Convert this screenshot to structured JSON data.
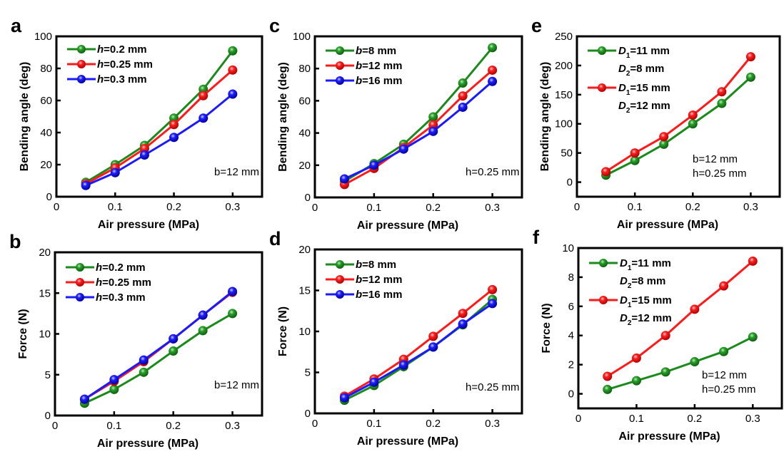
{
  "figure": {
    "colors": {
      "green": "#1a8a1a",
      "red": "#ff1a1a",
      "blue": "#1a1aff"
    }
  },
  "chart_data": [
    {
      "id": "a",
      "panel_letter": "a",
      "type": "line",
      "xlabel": "Air pressure (MPa)",
      "ylabel": "Bending angle (deg)",
      "xlim": [
        0,
        0.35
      ],
      "ylim": [
        0,
        100
      ],
      "xticks": [
        0,
        0.1,
        0.2,
        0.3
      ],
      "xtick_labels": [
        "0",
        "0.1",
        "0.2",
        "0.3"
      ],
      "yticks": [
        0,
        20,
        40,
        60,
        80,
        100
      ],
      "ytick_labels": [
        "0",
        "20",
        "40",
        "60",
        "80",
        "100"
      ],
      "grid": false,
      "legend_position": "top-left",
      "annotation": [
        "b=12 mm"
      ],
      "x": [
        0.05,
        0.1,
        0.15,
        0.2,
        0.25,
        0.3
      ],
      "series": [
        {
          "name": "h=0.2 mm",
          "var": "h",
          "rest": "=0.2 mm",
          "color": "#1a8a1a",
          "values": [
            9,
            20,
            32,
            49,
            67,
            91
          ]
        },
        {
          "name": "h=0.25 mm",
          "var": "h",
          "rest": "=0.25 mm",
          "color": "#ff1a1a",
          "values": [
            8,
            18,
            30,
            45,
            63,
            79
          ]
        },
        {
          "name": "h=0.3 mm",
          "var": "h",
          "rest": "=0.3 mm",
          "color": "#1a1aff",
          "values": [
            7,
            15,
            26,
            37,
            49,
            64
          ]
        }
      ]
    },
    {
      "id": "b",
      "panel_letter": "b",
      "type": "line",
      "xlabel": "Air pressure (MPa)",
      "ylabel": "Force (N)",
      "xlim": [
        0,
        0.35
      ],
      "ylim": [
        0,
        20
      ],
      "xticks": [
        0,
        0.1,
        0.2,
        0.3
      ],
      "xtick_labels": [
        "0",
        "0.1",
        "0.2",
        "0.3"
      ],
      "yticks": [
        0,
        5,
        10,
        15,
        20
      ],
      "ytick_labels": [
        "0",
        "5",
        "10",
        "15",
        "20"
      ],
      "grid": false,
      "legend_position": "top-left",
      "annotation": [
        "b=12 mm"
      ],
      "x": [
        0.05,
        0.1,
        0.15,
        0.2,
        0.25,
        0.3
      ],
      "series": [
        {
          "name": "h=0.2 mm",
          "var": "h",
          "rest": "=0.2 mm",
          "color": "#1a8a1a",
          "values": [
            1.5,
            3.2,
            5.3,
            7.9,
            10.4,
            12.5
          ]
        },
        {
          "name": "h=0.25 mm",
          "var": "h",
          "rest": "=0.25 mm",
          "color": "#ff1a1a",
          "values": [
            2.0,
            4.2,
            6.6,
            9.4,
            12.3,
            15.1
          ]
        },
        {
          "name": "h=0.3 mm",
          "var": "h",
          "rest": "=0.3 mm",
          "color": "#1a1aff",
          "values": [
            2.0,
            4.4,
            6.8,
            9.4,
            12.3,
            15.2
          ]
        }
      ]
    },
    {
      "id": "c",
      "panel_letter": "c",
      "type": "line",
      "xlabel": "Air pressure (MPa)",
      "ylabel": "Bending angle (deg)",
      "xlim": [
        0,
        0.35
      ],
      "ylim": [
        0,
        100
      ],
      "xticks": [
        0,
        0.1,
        0.2,
        0.3
      ],
      "xtick_labels": [
        "0",
        "0.1",
        "0.2",
        "0.3"
      ],
      "yticks": [
        0,
        20,
        40,
        60,
        80,
        100
      ],
      "ytick_labels": [
        "0",
        "20",
        "40",
        "60",
        "80",
        "100"
      ],
      "grid": false,
      "legend_position": "top-left",
      "annotation": [
        "h=0.25 mm"
      ],
      "x": [
        0.05,
        0.1,
        0.15,
        0.2,
        0.25,
        0.3
      ],
      "series": [
        {
          "name": "b=8 mm",
          "var": "b",
          "rest": "=8 mm",
          "color": "#1a8a1a",
          "values": [
            10,
            21,
            33,
            50,
            71,
            93
          ]
        },
        {
          "name": "b=12 mm",
          "var": "b",
          "rest": "=12 mm",
          "color": "#ff1a1a",
          "values": [
            8,
            18,
            31,
            45,
            63,
            79
          ]
        },
        {
          "name": "b=16 mm",
          "var": "b",
          "rest": "=16 mm",
          "color": "#1a1aff",
          "values": [
            11.5,
            20,
            30,
            41,
            56,
            72
          ]
        }
      ]
    },
    {
      "id": "d",
      "panel_letter": "d",
      "type": "line",
      "xlabel": "Air pressure (MPa)",
      "ylabel": "Force (N)",
      "xlim": [
        0,
        0.35
      ],
      "ylim": [
        0,
        20
      ],
      "xticks": [
        0,
        0.1,
        0.2,
        0.3
      ],
      "xtick_labels": [
        "0",
        "0.1",
        "0.2",
        "0.3"
      ],
      "yticks": [
        0,
        5,
        10,
        15,
        20
      ],
      "ytick_labels": [
        "0",
        "5",
        "10",
        "15",
        "20"
      ],
      "grid": false,
      "legend_position": "top-left",
      "annotation": [
        "h=0.25 mm"
      ],
      "x": [
        0.05,
        0.1,
        0.15,
        0.2,
        0.25,
        0.3
      ],
      "series": [
        {
          "name": "b=8 mm",
          "var": "b",
          "rest": "=8 mm",
          "color": "#1a8a1a",
          "values": [
            1.6,
            3.4,
            5.7,
            8.1,
            10.8,
            13.9
          ]
        },
        {
          "name": "b=12 mm",
          "var": "b",
          "rest": "=12 mm",
          "color": "#ff1a1a",
          "values": [
            2.1,
            4.2,
            6.6,
            9.4,
            12.2,
            15.1
          ]
        },
        {
          "name": "b=16 mm",
          "var": "b",
          "rest": "=16 mm",
          "color": "#1a1aff",
          "values": [
            1.9,
            3.8,
            5.9,
            8.1,
            10.9,
            13.4
          ]
        }
      ]
    },
    {
      "id": "e",
      "panel_letter": "e",
      "type": "line",
      "xlabel": "Air pressure (MPa)",
      "ylabel": "Bending angle (deg)",
      "xlim": [
        0,
        0.35
      ],
      "ylim": [
        -25,
        250
      ],
      "xticks": [
        0,
        0.1,
        0.2,
        0.3
      ],
      "xtick_labels": [
        "0",
        "0.1",
        "0.2",
        "0.3"
      ],
      "yticks": [
        0,
        50,
        100,
        150,
        200,
        250
      ],
      "ytick_labels": [
        "0",
        "50",
        "100",
        "150",
        "200",
        "250"
      ],
      "grid": false,
      "legend_position": "top-left",
      "annotation": [
        "b=12 mm",
        "h=0.25 mm"
      ],
      "x": [
        0.05,
        0.1,
        0.15,
        0.2,
        0.25,
        0.3
      ],
      "series": [
        {
          "name": "D1=11 mm, D2=8 mm",
          "line1": [
            "D",
            "1",
            "=11 mm"
          ],
          "line2": [
            "D",
            "2",
            "=8 mm"
          ],
          "color": "#1a8a1a",
          "values": [
            12,
            37,
            65,
            100,
            135,
            180
          ]
        },
        {
          "name": "D1=15 mm, D2=12 mm",
          "line1": [
            "D",
            "1",
            "=15 mm"
          ],
          "line2": [
            "D",
            "2",
            "=12 mm"
          ],
          "color": "#ff1a1a",
          "values": [
            18,
            50,
            78,
            115,
            155,
            215
          ]
        }
      ]
    },
    {
      "id": "f",
      "panel_letter": "f",
      "type": "line",
      "xlabel": "Air pressure (MPa)",
      "ylabel": "Force (N)",
      "xlim": [
        0,
        0.35
      ],
      "ylim": [
        -1,
        10
      ],
      "xticks": [
        0,
        0.1,
        0.2,
        0.3
      ],
      "xtick_labels": [
        "0",
        "0.1",
        "0.2",
        "0.3"
      ],
      "yticks": [
        0,
        2,
        4,
        6,
        8,
        10
      ],
      "ytick_labels": [
        "0",
        "2",
        "4",
        "6",
        "8",
        "10"
      ],
      "grid": false,
      "legend_position": "top-left",
      "annotation": [
        "b=12 mm",
        "h=0.25 mm"
      ],
      "x": [
        0.05,
        0.1,
        0.15,
        0.2,
        0.25,
        0.3
      ],
      "series": [
        {
          "name": "D1=11 mm, D2=8 mm",
          "line1": [
            "D",
            "1",
            "=11 mm"
          ],
          "line2": [
            "D",
            "2",
            "=8 mm"
          ],
          "color": "#1a8a1a",
          "values": [
            0.3,
            0.9,
            1.5,
            2.2,
            2.9,
            3.9
          ]
        },
        {
          "name": "D1=15 mm, D2=12 mm",
          "line1": [
            "D",
            "1",
            "=15 mm"
          ],
          "line2": [
            "D",
            "2",
            "=12 mm"
          ],
          "color": "#ff1a1a",
          "values": [
            1.2,
            2.45,
            4.0,
            5.8,
            7.4,
            9.1
          ]
        }
      ]
    }
  ]
}
